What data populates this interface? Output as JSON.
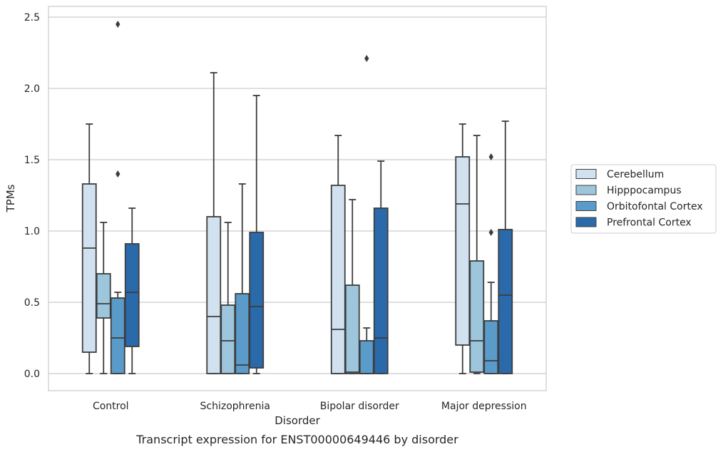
{
  "chart_data": {
    "type": "box",
    "title": "",
    "caption": "Transcript expression for ENST00000649446 by disorder",
    "xlabel": "Disorder",
    "ylabel": "TPMs",
    "ylim": [
      -0.12,
      2.58
    ],
    "yticks": [
      0.0,
      0.5,
      1.0,
      1.5,
      2.0,
      2.5
    ],
    "ytick_labels": [
      "0.0",
      "0.5",
      "1.0",
      "1.5",
      "2.0",
      "2.5"
    ],
    "grid": "horizontal",
    "legend_position": "right",
    "categories": [
      "Control",
      "Schizophrenia",
      "Bipolar disorder",
      "Major depression"
    ],
    "series": [
      {
        "name": "Cerebellum",
        "color": "#d1e1f0",
        "boxes": [
          {
            "whislo": 0.0,
            "q1": 0.15,
            "med": 0.88,
            "q3": 1.33,
            "whishi": 1.75,
            "fliers": []
          },
          {
            "whislo": 0.0,
            "q1": 0.0,
            "med": 0.4,
            "q3": 1.1,
            "whishi": 2.11,
            "fliers": []
          },
          {
            "whislo": 0.0,
            "q1": 0.0,
            "med": 0.31,
            "q3": 1.32,
            "whishi": 1.67,
            "fliers": []
          },
          {
            "whislo": 0.0,
            "q1": 0.2,
            "med": 1.19,
            "q3": 1.52,
            "whishi": 1.75,
            "fliers": []
          }
        ]
      },
      {
        "name": "Hipppocampus",
        "color": "#9dc6dd",
        "boxes": [
          {
            "whislo": 0.0,
            "q1": 0.39,
            "med": 0.49,
            "q3": 0.7,
            "whishi": 1.06,
            "fliers": []
          },
          {
            "whislo": 0.0,
            "q1": 0.0,
            "med": 0.23,
            "q3": 0.48,
            "whishi": 1.06,
            "fliers": []
          },
          {
            "whislo": 0.0,
            "q1": 0.0,
            "med": 0.01,
            "q3": 0.62,
            "whishi": 1.22,
            "fliers": []
          },
          {
            "whislo": 0.0,
            "q1": 0.01,
            "med": 0.23,
            "q3": 0.79,
            "whishi": 1.67,
            "fliers": []
          }
        ]
      },
      {
        "name": "Orbitofontal Cortex",
        "color": "#5b9bc9",
        "boxes": [
          {
            "whislo": 0.0,
            "q1": 0.0,
            "med": 0.25,
            "q3": 0.53,
            "whishi": 0.57,
            "fliers": [
              1.4,
              2.45
            ]
          },
          {
            "whislo": 0.0,
            "q1": 0.0,
            "med": 0.06,
            "q3": 0.56,
            "whishi": 1.33,
            "fliers": []
          },
          {
            "whislo": 0.0,
            "q1": 0.0,
            "med": 0.0,
            "q3": 0.23,
            "whishi": 0.32,
            "fliers": [
              2.21
            ]
          },
          {
            "whislo": 0.0,
            "q1": 0.0,
            "med": 0.09,
            "q3": 0.37,
            "whishi": 0.64,
            "fliers": [
              0.99,
              1.52
            ]
          }
        ]
      },
      {
        "name": "Prefrontal Cortex",
        "color": "#2a6aab",
        "boxes": [
          {
            "whislo": 0.0,
            "q1": 0.19,
            "med": 0.57,
            "q3": 0.91,
            "whishi": 1.16,
            "fliers": []
          },
          {
            "whislo": 0.0,
            "q1": 0.04,
            "med": 0.47,
            "q3": 0.99,
            "whishi": 1.95,
            "fliers": []
          },
          {
            "whislo": 0.0,
            "q1": 0.0,
            "med": 0.25,
            "q3": 1.16,
            "whishi": 1.49,
            "fliers": []
          },
          {
            "whislo": 0.0,
            "q1": 0.0,
            "med": 0.55,
            "q3": 1.01,
            "whishi": 1.77,
            "fliers": []
          }
        ]
      }
    ]
  }
}
